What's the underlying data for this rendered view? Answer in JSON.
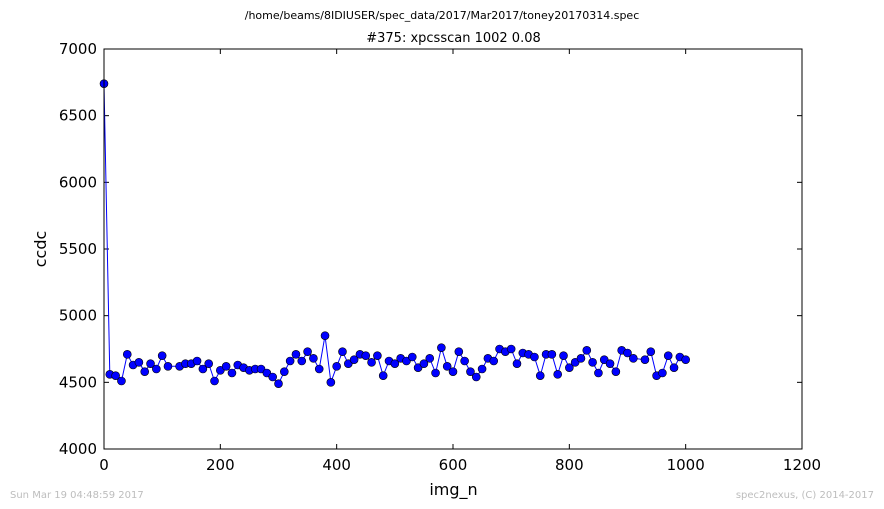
{
  "figure": {
    "suptitle": "/home/beams/8IDIUSER/spec_data/2017/Mar2017/toney20170314.spec",
    "footer_left": "Sun Mar 19 04:48:59 2017",
    "footer_right": "spec2nexus, (C) 2014-2017"
  },
  "chart_data": {
    "type": "line",
    "title": "#375: xpcsscan 1002 0.08",
    "xlabel": "img_n",
    "ylabel": "ccdc",
    "xlim": [
      0,
      1200
    ],
    "ylim": [
      4000,
      7000
    ],
    "xticks": [
      0,
      200,
      400,
      600,
      800,
      1000,
      1200
    ],
    "yticks": [
      4000,
      4500,
      5000,
      5500,
      6000,
      6500,
      7000
    ],
    "grid": false,
    "legend": "none",
    "marker": "circle",
    "color": "#0000ff",
    "series": [
      {
        "x": [
          0,
          10,
          20,
          30,
          40,
          50,
          60,
          70,
          80,
          90,
          100,
          110,
          130,
          140,
          150,
          160,
          170,
          180,
          190,
          200,
          210,
          220,
          230,
          240,
          250,
          260,
          270,
          280,
          290,
          300,
          310,
          320,
          330,
          340,
          350,
          360,
          370,
          380,
          390,
          400,
          410,
          420,
          430,
          440,
          450,
          460,
          470,
          480,
          490,
          500,
          510,
          520,
          530,
          540,
          550,
          560,
          570,
          580,
          590,
          600,
          610,
          620,
          630,
          640,
          650,
          660,
          670,
          680,
          690,
          700,
          710,
          720,
          730,
          740,
          750,
          760,
          770,
          780,
          790,
          800,
          810,
          820,
          830,
          840,
          850,
          860,
          870,
          880,
          890,
          900,
          910,
          930,
          940,
          950,
          960,
          970,
          980,
          990,
          1000
        ],
        "y": [
          6740,
          4560,
          4550,
          4510,
          4710,
          4630,
          4650,
          4580,
          4640,
          4600,
          4700,
          4620,
          4620,
          4640,
          4640,
          4660,
          4600,
          4640,
          4510,
          4590,
          4620,
          4570,
          4630,
          4610,
          4590,
          4600,
          4600,
          4570,
          4540,
          4490,
          4580,
          4660,
          4710,
          4660,
          4730,
          4680,
          4600,
          4850,
          4500,
          4620,
          4730,
          4640,
          4670,
          4710,
          4700,
          4650,
          4700,
          4550,
          4660,
          4640,
          4680,
          4660,
          4690,
          4610,
          4640,
          4680,
          4570,
          4760,
          4620,
          4580,
          4730,
          4660,
          4580,
          4540,
          4600,
          4680,
          4660,
          4750,
          4730,
          4750,
          4640,
          4720,
          4710,
          4690,
          4550,
          4710,
          4710,
          4560,
          4700,
          4610,
          4650,
          4680,
          4740,
          4650,
          4570,
          4670,
          4640,
          4580,
          4740,
          4720,
          4680,
          4670,
          4730,
          4550,
          4570,
          4700,
          4610,
          4690,
          4670
        ]
      }
    ]
  }
}
